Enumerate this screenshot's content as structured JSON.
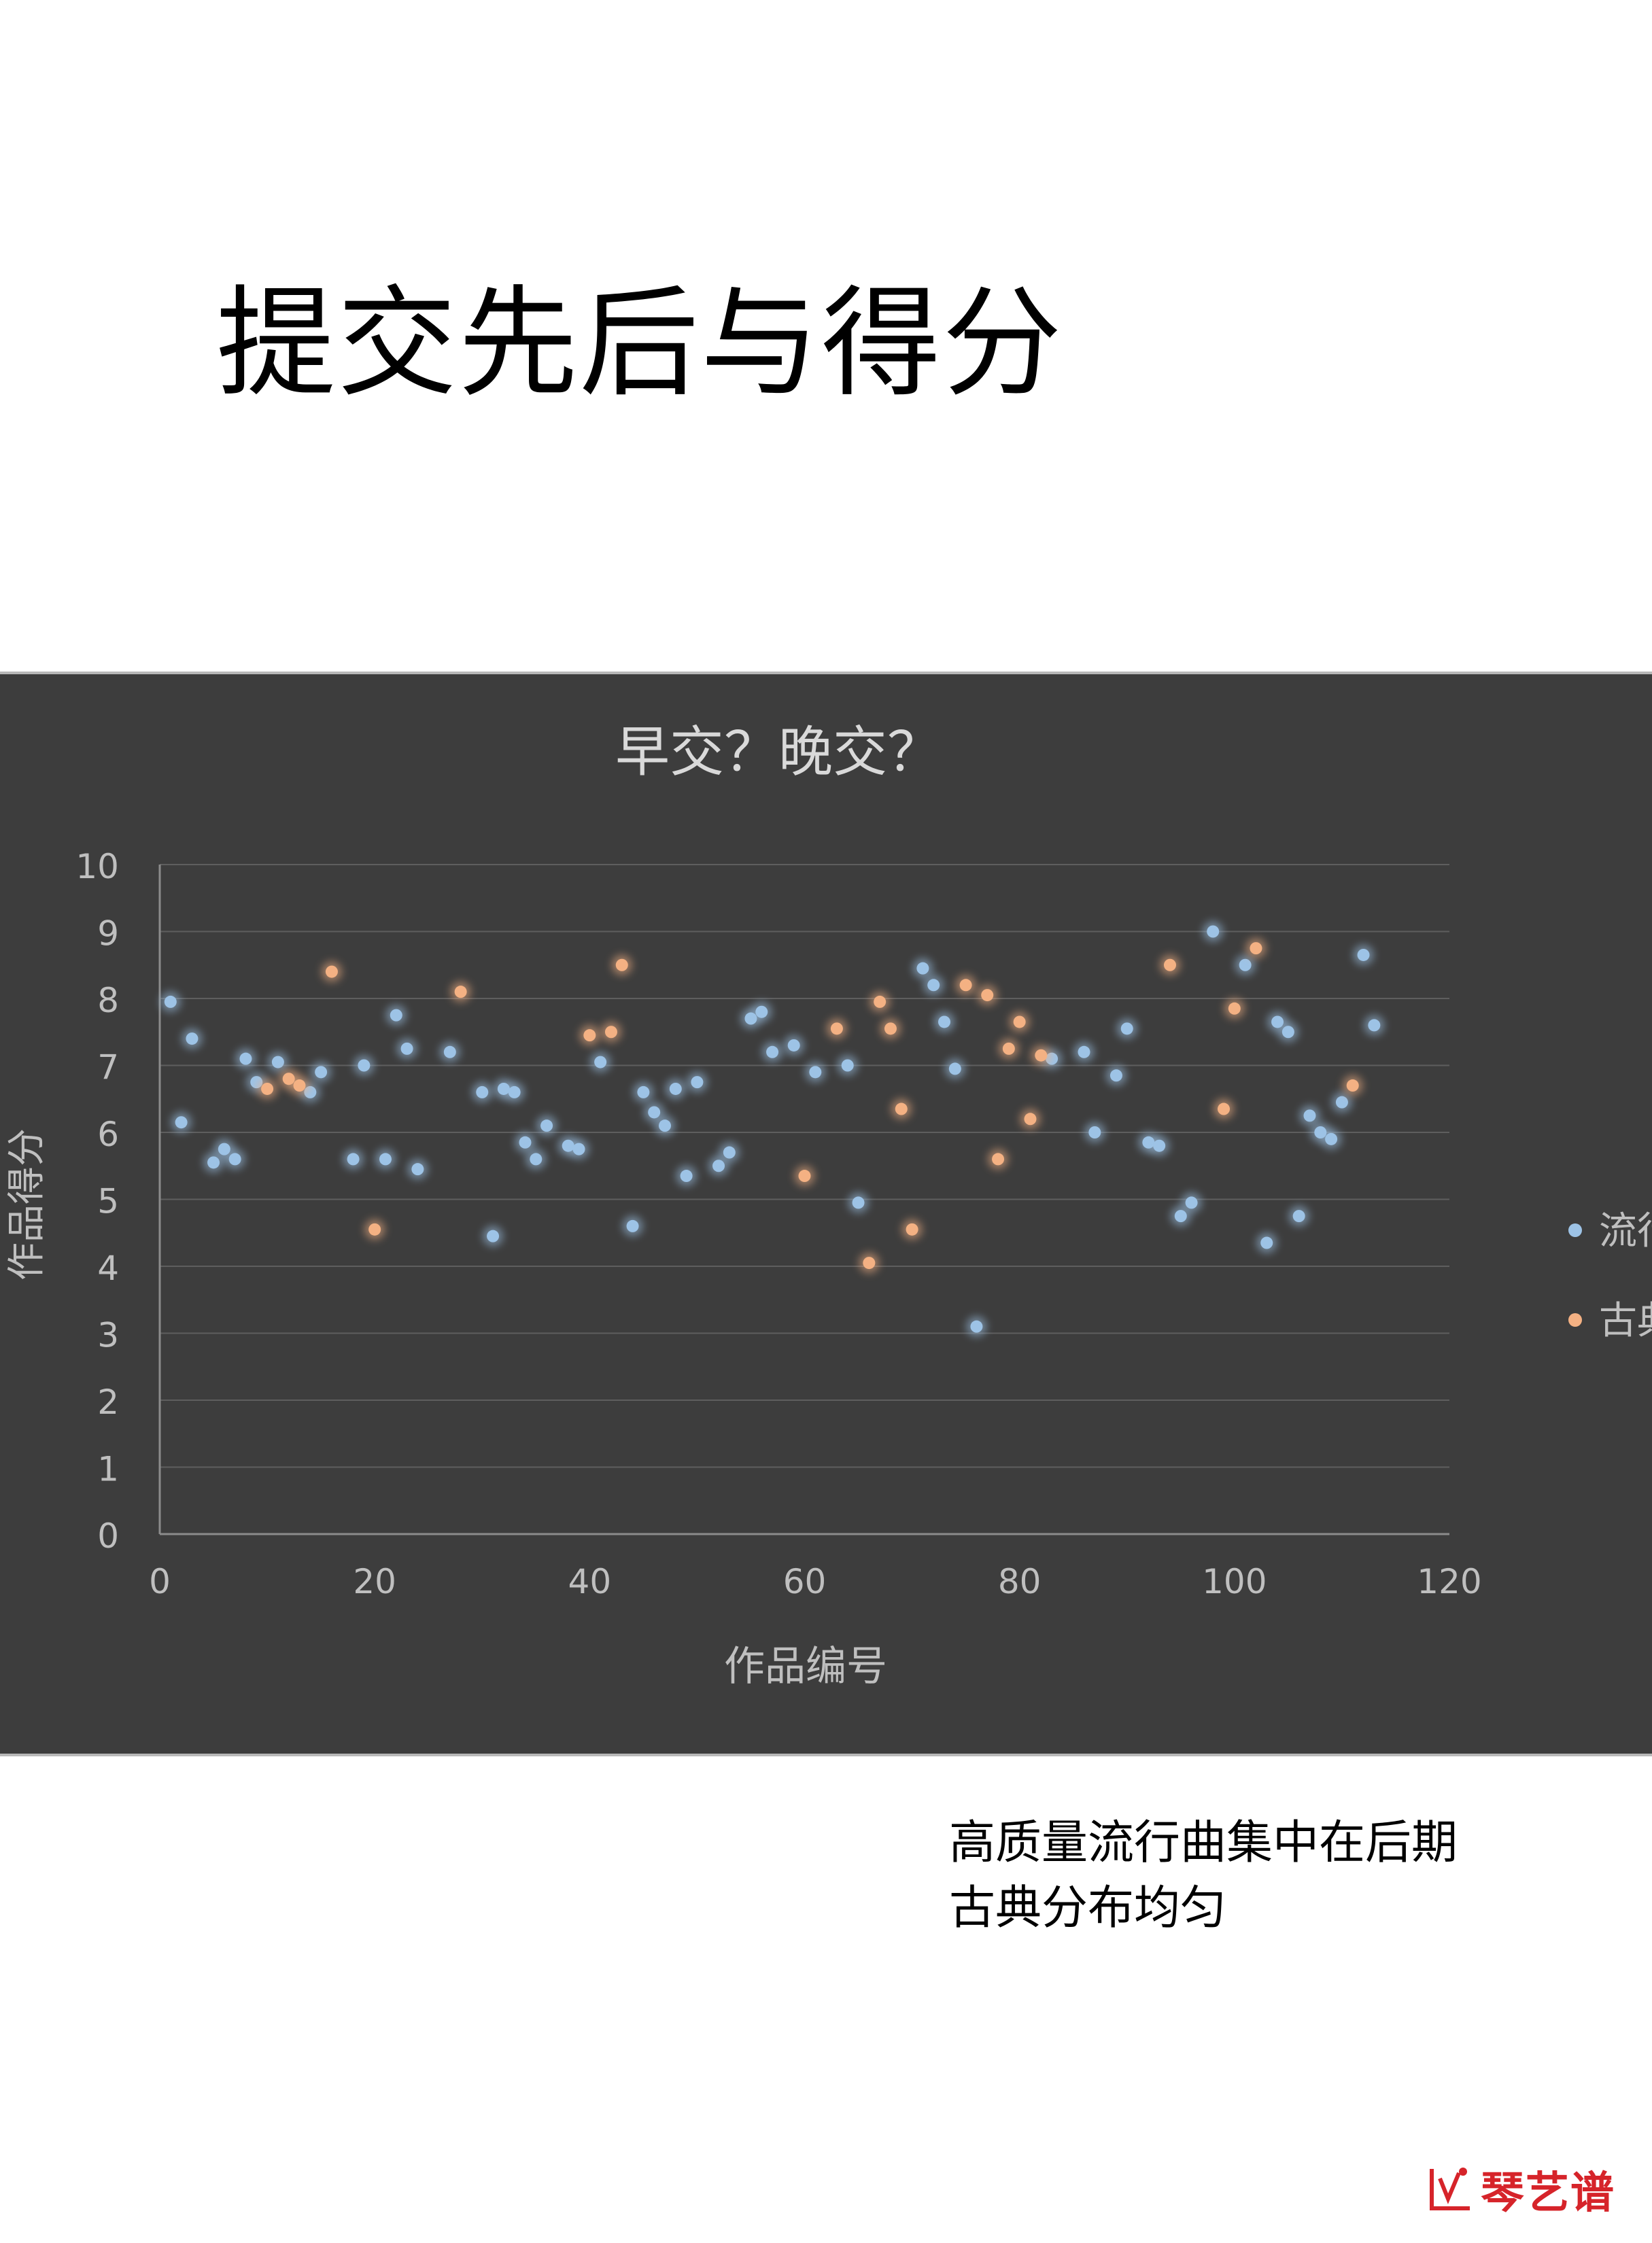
{
  "slide": {
    "title": "提交先后与得分",
    "caption_lines": [
      "高质量流行曲集中在后期",
      "古典分布均匀"
    ],
    "brand_name": "琴艺谱"
  },
  "chart_data": {
    "type": "scatter",
    "title": "早交？晚交？",
    "xlabel": "作品编号",
    "ylabel": "作品得分",
    "xlim": [
      0,
      120
    ],
    "ylim": [
      0,
      10
    ],
    "xticks": [
      "0",
      "20",
      "40",
      "60",
      "80",
      "100",
      "120"
    ],
    "yticks": [
      "0",
      "1",
      "2",
      "3",
      "4",
      "5",
      "6",
      "7",
      "8",
      "9",
      "10"
    ],
    "grid": true,
    "legend_position": "right",
    "background": "#3d3d3d",
    "series": [
      {
        "name": "流行",
        "color": "#9dc3e6",
        "points": [
          [
            1,
            7.95
          ],
          [
            2,
            6.15
          ],
          [
            3,
            7.4
          ],
          [
            5,
            5.55
          ],
          [
            6,
            5.75
          ],
          [
            7,
            5.6
          ],
          [
            8,
            7.1
          ],
          [
            9,
            6.75
          ],
          [
            11,
            7.05
          ],
          [
            14,
            6.6
          ],
          [
            15,
            6.9
          ],
          [
            18,
            5.6
          ],
          [
            19,
            7.0
          ],
          [
            21,
            5.6
          ],
          [
            22,
            7.75
          ],
          [
            23,
            7.25
          ],
          [
            24,
            5.45
          ],
          [
            27,
            7.2
          ],
          [
            30,
            6.6
          ],
          [
            31,
            4.45
          ],
          [
            32,
            6.65
          ],
          [
            33,
            6.6
          ],
          [
            34,
            5.85
          ],
          [
            35,
            5.6
          ],
          [
            36,
            6.1
          ],
          [
            38,
            5.8
          ],
          [
            39,
            5.75
          ],
          [
            41,
            7.05
          ],
          [
            44,
            4.6
          ],
          [
            45,
            6.6
          ],
          [
            46,
            6.3
          ],
          [
            47,
            6.1
          ],
          [
            48,
            6.65
          ],
          [
            49,
            5.35
          ],
          [
            50,
            6.75
          ],
          [
            52,
            5.5
          ],
          [
            53,
            5.7
          ],
          [
            55,
            7.7
          ],
          [
            56,
            7.8
          ],
          [
            57,
            7.2
          ],
          [
            59,
            7.3
          ],
          [
            61,
            6.9
          ],
          [
            64,
            7.0
          ],
          [
            65,
            4.95
          ],
          [
            71,
            8.45
          ],
          [
            72,
            8.2
          ],
          [
            73,
            7.65
          ],
          [
            74,
            6.95
          ],
          [
            76,
            3.1
          ],
          [
            83,
            7.1
          ],
          [
            86,
            7.2
          ],
          [
            87,
            6.0
          ],
          [
            89,
            6.85
          ],
          [
            90,
            7.55
          ],
          [
            92,
            5.85
          ],
          [
            93,
            5.8
          ],
          [
            95,
            4.75
          ],
          [
            96,
            4.95
          ],
          [
            98,
            9.0
          ],
          [
            101,
            8.5
          ],
          [
            103,
            4.35
          ],
          [
            104,
            7.65
          ],
          [
            105,
            7.5
          ],
          [
            106,
            4.75
          ],
          [
            107,
            6.25
          ],
          [
            108,
            6.0
          ],
          [
            109,
            5.9
          ],
          [
            110,
            6.45
          ],
          [
            112,
            8.65
          ],
          [
            113,
            7.6
          ]
        ]
      },
      {
        "name": "古典",
        "color": "#f4b183",
        "points": [
          [
            10,
            6.65
          ],
          [
            12,
            6.8
          ],
          [
            13,
            6.7
          ],
          [
            16,
            8.4
          ],
          [
            20,
            4.55
          ],
          [
            28,
            8.1
          ],
          [
            40,
            7.45
          ],
          [
            42,
            7.5
          ],
          [
            43,
            8.5
          ],
          [
            60,
            5.35
          ],
          [
            63,
            7.55
          ],
          [
            66,
            4.05
          ],
          [
            67,
            7.95
          ],
          [
            68,
            7.55
          ],
          [
            69,
            6.35
          ],
          [
            70,
            4.55
          ],
          [
            75,
            8.2
          ],
          [
            77,
            8.05
          ],
          [
            78,
            5.6
          ],
          [
            79,
            7.25
          ],
          [
            80,
            7.65
          ],
          [
            81,
            6.2
          ],
          [
            82,
            7.15
          ],
          [
            94,
            8.5
          ],
          [
            99,
            6.35
          ],
          [
            100,
            7.85
          ],
          [
            102,
            8.75
          ],
          [
            111,
            6.7
          ]
        ]
      }
    ]
  }
}
